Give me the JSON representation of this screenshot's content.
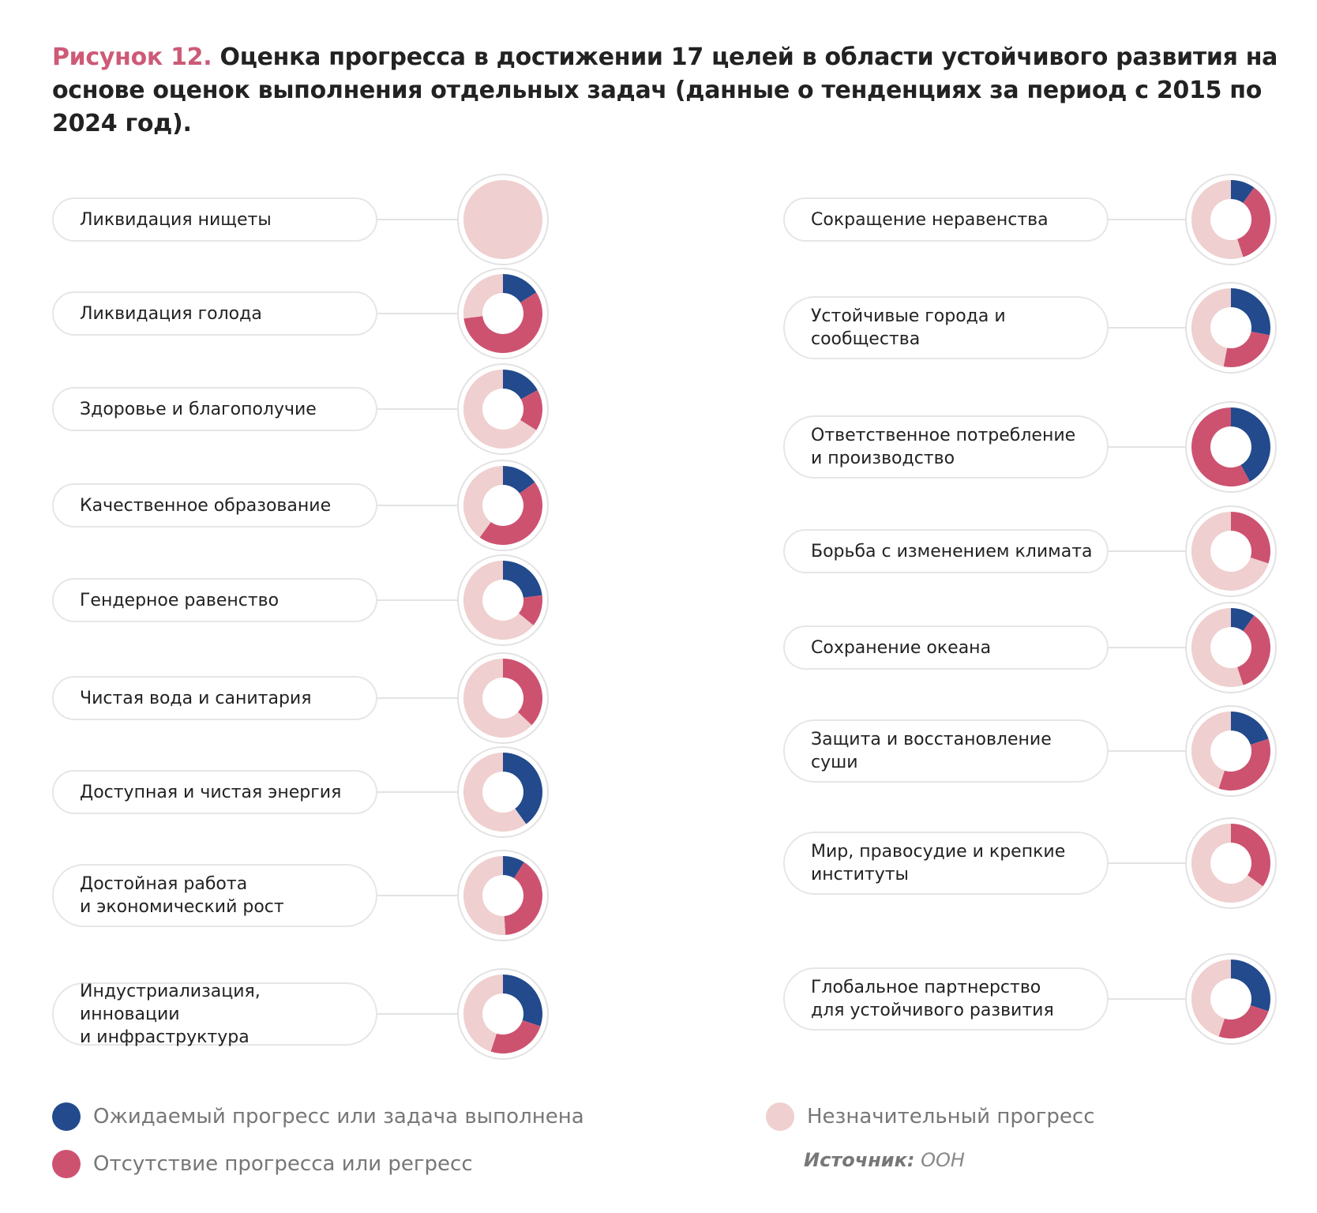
{
  "title": {
    "figure": "Рисунок 12.",
    "text": " Оценка прогресса в достижении 17 целей в области устойчивого развития на основе оценок выполнения отдельных задач (данные о тенденциях за период с 2015 по 2024 год)."
  },
  "colors": {
    "expected": "#224a8c",
    "regress": "#cd5270",
    "marginal": "#efcfcf"
  },
  "chart_data": {
    "type": "pie",
    "title": "Оценка прогресса в достижении 17 целей в области устойчивого развития на основе оценок выполнения отдельных задач (данные о тенденциях за период с 2015 по 2024 год).",
    "series_names": [
      "Ожидаемый прогресс или задача выполнена",
      "Отсутствие прогресса или регресс",
      "Незначительный прогресс"
    ],
    "goals": [
      {
        "label": "Ликвидация нищеты",
        "expected": 0,
        "regress": 0,
        "marginal": 100
      },
      {
        "label": "Ликвидация голода",
        "expected": 16,
        "regress": 57,
        "marginal": 27
      },
      {
        "label": "Здоровье и благополучие",
        "expected": 17,
        "regress": 17,
        "marginal": 66
      },
      {
        "label": "Качественное образование",
        "expected": 15,
        "regress": 45,
        "marginal": 40
      },
      {
        "label": "Гендерное равенство",
        "expected": 23,
        "regress": 13,
        "marginal": 64
      },
      {
        "label": "Чистая вода и санитария",
        "expected": 0,
        "regress": 37,
        "marginal": 63
      },
      {
        "label": "Доступная и чистая энергия",
        "expected": 40,
        "regress": 0,
        "marginal": 60
      },
      {
        "label": "Достойная работа\nи экономический рост",
        "expected": 9,
        "regress": 40,
        "marginal": 51
      },
      {
        "label": "Индустриализация, инновации\nи инфраструктура",
        "expected": 30,
        "regress": 25,
        "marginal": 45
      },
      {
        "label": "Сокращение неравенства",
        "expected": 10,
        "regress": 35,
        "marginal": 55
      },
      {
        "label": "Устойчивые города и\nсообщества",
        "expected": 28,
        "regress": 25,
        "marginal": 47
      },
      {
        "label": "Ответственное потребление\nи производство",
        "expected": 42,
        "regress": 58,
        "marginal": 0
      },
      {
        "label": "Борьба с изменением климата",
        "expected": 0,
        "regress": 30,
        "marginal": 70
      },
      {
        "label": "Сохранение океана",
        "expected": 10,
        "regress": 35,
        "marginal": 55
      },
      {
        "label": "Защита и восстановление\nсуши",
        "expected": 20,
        "regress": 35,
        "marginal": 45
      },
      {
        "label": "Мир, правосудие и крепкие\nинституты",
        "expected": 0,
        "regress": 35,
        "marginal": 65
      },
      {
        "label": "Глобальное партнерство\nдля устойчивого развития",
        "expected": 30,
        "regress": 25,
        "marginal": 45
      }
    ]
  },
  "legend": {
    "expected": "Ожидаемый прогресс или задача выполнена",
    "regress": "Отсутствие прогресса или регресс",
    "marginal": "Незначительный прогресс"
  },
  "source": {
    "label": "Источник:",
    "value": " ООН"
  }
}
